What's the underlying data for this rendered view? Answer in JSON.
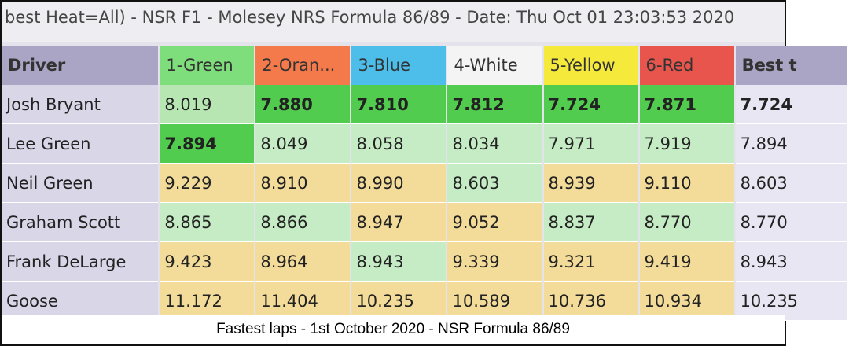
{
  "header": {
    "title": "best Heat=All) - NSR F1 - Molesey NRS Formula 86/89 - Date: Thu Oct 01 23:03:53 2020"
  },
  "table": {
    "columns": [
      "Driver",
      "1-Green",
      "2-Oran...",
      "3-Blue",
      "4-White",
      "5-Yellow",
      "6-Red",
      "Best t"
    ],
    "rows": [
      [
        "Josh Bryant",
        "8.019",
        "7.880",
        "7.810",
        "7.812",
        "7.724",
        "7.871",
        "7.724"
      ],
      [
        "Lee Green",
        "7.894",
        "8.049",
        "8.058",
        "8.034",
        "7.971",
        "7.919",
        "7.894"
      ],
      [
        "Neil Green",
        "9.229",
        "8.910",
        "8.990",
        "8.603",
        "8.939",
        "9.110",
        "8.603"
      ],
      [
        "Graham Scott",
        "8.865",
        "8.866",
        "8.947",
        "9.052",
        "8.837",
        "8.770",
        "8.770"
      ],
      [
        "Frank DeLarge",
        "9.423",
        "8.964",
        "8.943",
        "9.339",
        "9.321",
        "9.419",
        "8.943"
      ],
      [
        "Goose",
        "11.172",
        "11.404",
        "10.235",
        "10.589",
        "10.736",
        "10.934",
        "10.235"
      ]
    ]
  },
  "caption": "Fastest laps - 1st October 2020 - NSR Formula 86/89"
}
